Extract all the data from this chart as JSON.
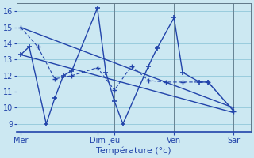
{
  "background_color": "#cce8f2",
  "grid_color": "#99ccdd",
  "line_color": "#2244aa",
  "xlabel": "Température (°c)",
  "ylim": [
    8.5,
    16.5
  ],
  "yticks": [
    9,
    10,
    11,
    12,
    13,
    14,
    15,
    16
  ],
  "x_labels": [
    "Mer",
    "Dim",
    "Jeu",
    "Ven",
    "Sar"
  ],
  "x_tick_pos": [
    0,
    9,
    11,
    18,
    25
  ],
  "xlim": [
    -0.5,
    27
  ],
  "series1_x": [
    0,
    1,
    3,
    4,
    5,
    6,
    9,
    10,
    11,
    12,
    15,
    16,
    18,
    19,
    21,
    22,
    25
  ],
  "series1_y": [
    13.3,
    13.8,
    9.0,
    10.6,
    12.0,
    12.3,
    16.2,
    12.2,
    10.4,
    9.0,
    12.6,
    13.7,
    15.6,
    12.2,
    11.6,
    11.6,
    9.8
  ],
  "series2_x": [
    0,
    2,
    4,
    6,
    9,
    11,
    13,
    15,
    17,
    19,
    22,
    25
  ],
  "series2_y": [
    15.0,
    13.8,
    11.8,
    12.0,
    12.5,
    11.1,
    12.6,
    11.7,
    11.6,
    11.6,
    11.6,
    9.8
  ],
  "trend1_x": [
    0,
    25
  ],
  "trend1_y": [
    15.0,
    10.0
  ],
  "trend2_x": [
    0,
    25
  ],
  "trend2_y": [
    13.3,
    9.7
  ],
  "vline_positions": [
    0,
    9,
    11,
    18,
    25
  ]
}
